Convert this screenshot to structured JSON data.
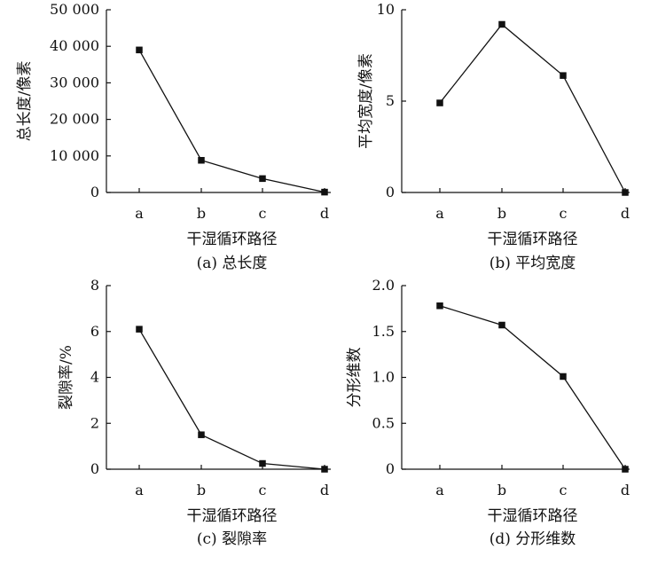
{
  "chart_data": [
    {
      "type": "line",
      "caption": "(a) 总长度",
      "xlabel": "干湿循环路径",
      "ylabel": "总长度/像素",
      "categories": [
        "a",
        "b",
        "c",
        "d"
      ],
      "values": [
        39000,
        8800,
        3800,
        100
      ],
      "ylim": [
        0,
        50000
      ],
      "yticks": [
        "0",
        "10 000",
        "20 000",
        "30 000",
        "40 000",
        "50 000"
      ],
      "ytick_values": [
        0,
        10000,
        20000,
        30000,
        40000,
        50000
      ],
      "grid": false,
      "marker": "square"
    },
    {
      "type": "line",
      "caption": "(b) 平均宽度",
      "xlabel": "干湿循环路径",
      "ylabel": "平均宽度/像素",
      "categories": [
        "a",
        "b",
        "c",
        "d"
      ],
      "values": [
        4.9,
        9.2,
        6.4,
        0.0
      ],
      "ylim": [
        0,
        10
      ],
      "yticks": [
        "0",
        "5",
        "10"
      ],
      "ytick_values": [
        0,
        5,
        10
      ],
      "grid": false,
      "marker": "square"
    },
    {
      "type": "line",
      "caption": "(c) 裂隙率",
      "xlabel": "干湿循环路径",
      "ylabel": "裂隙率/%",
      "categories": [
        "a",
        "b",
        "c",
        "d"
      ],
      "values": [
        6.1,
        1.5,
        0.25,
        0.0
      ],
      "ylim": [
        0,
        8
      ],
      "yticks": [
        "0",
        "2",
        "4",
        "6",
        "8"
      ],
      "ytick_values": [
        0,
        2,
        4,
        6,
        8
      ],
      "grid": false,
      "marker": "square"
    },
    {
      "type": "line",
      "caption": "(d) 分形维数",
      "xlabel": "干湿循环路径",
      "ylabel": "分形维数",
      "categories": [
        "a",
        "b",
        "c",
        "d"
      ],
      "values": [
        1.78,
        1.57,
        1.01,
        0.0
      ],
      "ylim": [
        0,
        2.0
      ],
      "yticks": [
        "0",
        "0.5",
        "1.0",
        "1.5",
        "2.0"
      ],
      "ytick_values": [
        0,
        0.5,
        1.0,
        1.5,
        2.0
      ],
      "grid": false,
      "marker": "square"
    }
  ]
}
